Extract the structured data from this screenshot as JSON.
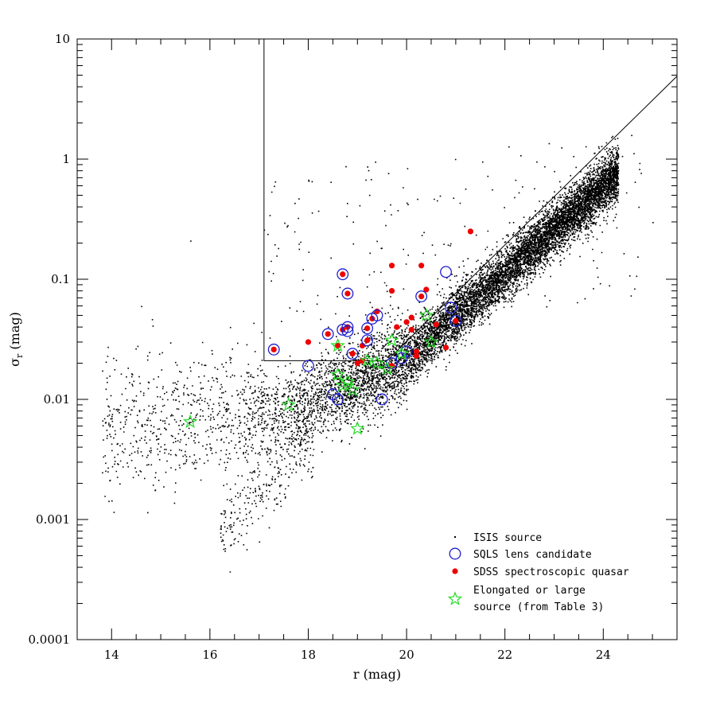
{
  "chart_data": {
    "type": "scatter",
    "title": "",
    "xlabel": "r (mag)",
    "ylabel": "σ_r (mag)",
    "ylabel_main": "σ",
    "ylabel_sub": "r",
    "ylabel_unit": " (mag)",
    "xlim": [
      13.3,
      25.5
    ],
    "ylim": [
      0.0001,
      10
    ],
    "yscale": "log",
    "grid": false,
    "legend_position": "bottom-right",
    "x_ticks": [
      14,
      16,
      18,
      20,
      22,
      24
    ],
    "x_tick_labels": [
      "14",
      "16",
      "18",
      "20",
      "22",
      "24"
    ],
    "y_ticks": [
      0.0001,
      0.001,
      0.01,
      0.1,
      1,
      10
    ],
    "y_tick_labels": [
      "0.0001",
      "0.001",
      "0.01",
      "0.1",
      "1",
      "10"
    ],
    "selection_lines": {
      "vertical_r": 17.1,
      "horizontal_sigma": 0.021,
      "diagonal": [
        [
          19.6,
          0.021
        ],
        [
          25.5,
          4.9
        ]
      ]
    },
    "legend": [
      {
        "label": "ISIS source",
        "marker": "dot",
        "color": "#000000"
      },
      {
        "label": "SQLS lens candidate",
        "marker": "open-circle",
        "color": "#2020d0"
      },
      {
        "label": "SDSS spectroscopic quasar",
        "marker": "filled-circle",
        "color": "#ee0000"
      },
      {
        "label": "Elongated or large",
        "label_line2": "source (from Table 3)",
        "marker": "open-star",
        "color": "#22dd22"
      }
    ],
    "series": [
      {
        "name": "ISIS source",
        "color": "#000000",
        "point_count_approx": 12000,
        "sample_points": [
          [
            13.9,
            0.014
          ],
          [
            14.3,
            0.01
          ],
          [
            14.6,
            0.06
          ],
          [
            15.0,
            0.008
          ],
          [
            15.6,
            0.0065
          ],
          [
            15.6,
            0.21
          ],
          [
            16.0,
            0.006
          ],
          [
            16.5,
            0.0007
          ],
          [
            16.4,
            0.00037
          ],
          [
            17.0,
            0.0018
          ],
          [
            17.3,
            0.6
          ],
          [
            17.9,
            0.011
          ],
          [
            18.5,
            0.012
          ],
          [
            19.5,
            0.015
          ],
          [
            20.5,
            0.04
          ],
          [
            21.5,
            0.12
          ],
          [
            22.5,
            0.25
          ],
          [
            23.5,
            0.4
          ],
          [
            24.0,
            0.9
          ],
          [
            24.2,
            1.05
          ],
          [
            25.0,
            0.3
          ],
          [
            23.0,
            0.18
          ],
          [
            22.0,
            0.08
          ],
          [
            21.0,
            0.05
          ]
        ]
      },
      {
        "name": "SQLS lens candidate",
        "color": "#2020d0",
        "points": [
          [
            17.3,
            0.026
          ],
          [
            18.0,
            0.019
          ],
          [
            18.4,
            0.035
          ],
          [
            18.7,
            0.11
          ],
          [
            18.8,
            0.076
          ],
          [
            18.8,
            0.04
          ],
          [
            18.7,
            0.038
          ],
          [
            18.8,
            0.037
          ],
          [
            18.9,
            0.024
          ],
          [
            19.2,
            0.039
          ],
          [
            19.3,
            0.047
          ],
          [
            19.4,
            0.05
          ],
          [
            19.2,
            0.031
          ],
          [
            18.5,
            0.011
          ],
          [
            18.6,
            0.01
          ],
          [
            19.5,
            0.01
          ],
          [
            19.7,
            0.02
          ],
          [
            20.8,
            0.115
          ],
          [
            20.9,
            0.058
          ],
          [
            21.0,
            0.045
          ],
          [
            20.3,
            0.072
          ],
          [
            20.0,
            0.025
          ],
          [
            19.9,
            0.022
          ]
        ]
      },
      {
        "name": "SDSS spectroscopic quasar",
        "color": "#ee0000",
        "points": [
          [
            17.3,
            0.026
          ],
          [
            18.0,
            0.03
          ],
          [
            18.4,
            0.035
          ],
          [
            18.7,
            0.11
          ],
          [
            18.8,
            0.076
          ],
          [
            18.7,
            0.038
          ],
          [
            18.8,
            0.04
          ],
          [
            18.9,
            0.024
          ],
          [
            19.2,
            0.039
          ],
          [
            19.3,
            0.047
          ],
          [
            19.4,
            0.054
          ],
          [
            19.2,
            0.031
          ],
          [
            19.1,
            0.028
          ],
          [
            19.7,
            0.13
          ],
          [
            19.7,
            0.08
          ],
          [
            20.3,
            0.13
          ],
          [
            20.4,
            0.082
          ],
          [
            20.3,
            0.072
          ],
          [
            21.3,
            0.25
          ],
          [
            20.1,
            0.048
          ],
          [
            20.0,
            0.044
          ],
          [
            20.1,
            0.038
          ],
          [
            19.8,
            0.04
          ],
          [
            20.6,
            0.042
          ],
          [
            20.8,
            0.027
          ],
          [
            21.0,
            0.045
          ],
          [
            20.2,
            0.025
          ],
          [
            20.2,
            0.023
          ],
          [
            19.7,
            0.019
          ],
          [
            19.1,
            0.021
          ],
          [
            19.0,
            0.02
          ],
          [
            18.6,
            0.028
          ]
        ]
      },
      {
        "name": "Elongated or large source (from Table 3)",
        "color": "#22dd22",
        "points": [
          [
            15.6,
            0.0065
          ],
          [
            17.6,
            0.009
          ],
          [
            18.6,
            0.028
          ],
          [
            18.6,
            0.016
          ],
          [
            18.7,
            0.013
          ],
          [
            18.9,
            0.012
          ],
          [
            19.0,
            0.0057
          ],
          [
            19.2,
            0.021
          ],
          [
            19.4,
            0.02
          ],
          [
            19.6,
            0.018
          ],
          [
            19.7,
            0.031
          ],
          [
            19.9,
            0.024
          ],
          [
            20.4,
            0.05
          ],
          [
            20.5,
            0.03
          ],
          [
            18.8,
            0.014
          ]
        ]
      }
    ]
  }
}
